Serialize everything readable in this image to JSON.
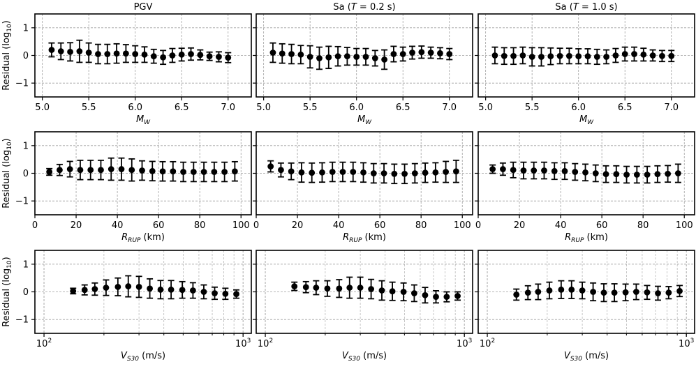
{
  "figure": {
    "column_titles": [
      "PGV",
      "Sa (T = 0.2 s)",
      "Sa (T = 1.0 s)"
    ],
    "ylabel": "Residual (log10)",
    "yticks": [
      -1,
      0,
      1
    ]
  },
  "chart_data": [
    {
      "type": "scatter",
      "row": 0,
      "col": 0,
      "title": "PGV",
      "xlabel": "MW",
      "ylabel": "Residual (log10)",
      "xscale": "linear",
      "xlim": [
        4.92,
        7.25
      ],
      "ylim": [
        -1.5,
        1.5
      ],
      "xticks": [
        5.0,
        5.5,
        6.0,
        6.5,
        7.0
      ],
      "xticklabels": [
        "5.0",
        "5.5",
        "6.0",
        "6.5",
        "7.0"
      ],
      "x": [
        5.1,
        5.2,
        5.3,
        5.4,
        5.5,
        5.6,
        5.7,
        5.8,
        5.9,
        6.0,
        6.1,
        6.2,
        6.3,
        6.4,
        6.5,
        6.6,
        6.7,
        6.8,
        6.9,
        7.0
      ],
      "y": [
        0.2,
        0.15,
        0.13,
        0.15,
        0.1,
        0.05,
        0.05,
        0.07,
        0.07,
        0.05,
        0.03,
        -0.03,
        -0.07,
        0.0,
        0.03,
        0.05,
        0.02,
        -0.03,
        -0.05,
        -0.08
      ],
      "err": [
        0.25,
        0.3,
        0.33,
        0.4,
        0.35,
        0.35,
        0.35,
        0.35,
        0.32,
        0.3,
        0.28,
        0.25,
        0.25,
        0.25,
        0.23,
        0.22,
        0.18,
        0.15,
        0.18,
        0.18
      ]
    },
    {
      "type": "scatter",
      "row": 0,
      "col": 1,
      "title": "Sa (T = 0.2 s)",
      "xlabel": "MW",
      "ylabel": "",
      "xscale": "linear",
      "xlim": [
        4.92,
        7.25
      ],
      "ylim": [
        -1.5,
        1.5
      ],
      "xticks": [
        5.0,
        5.5,
        6.0,
        6.5,
        7.0
      ],
      "xticklabels": [
        "5.0",
        "5.5",
        "6.0",
        "6.5",
        "7.0"
      ],
      "x": [
        5.1,
        5.2,
        5.3,
        5.4,
        5.5,
        5.6,
        5.7,
        5.8,
        5.9,
        6.0,
        6.1,
        6.2,
        6.3,
        6.4,
        6.5,
        6.6,
        6.7,
        6.8,
        6.9,
        7.0
      ],
      "y": [
        0.1,
        0.07,
        0.05,
        0.03,
        -0.05,
        -0.1,
        -0.07,
        -0.03,
        -0.03,
        -0.05,
        -0.05,
        -0.1,
        -0.15,
        0.05,
        0.05,
        0.1,
        0.12,
        0.1,
        0.08,
        0.05
      ],
      "err": [
        0.35,
        0.35,
        0.35,
        0.33,
        0.4,
        0.4,
        0.4,
        0.35,
        0.32,
        0.3,
        0.3,
        0.28,
        0.35,
        0.28,
        0.25,
        0.23,
        0.22,
        0.2,
        0.2,
        0.2
      ]
    },
    {
      "type": "scatter",
      "row": 0,
      "col": 2,
      "title": "Sa (T = 1.0 s)",
      "xlabel": "MW",
      "ylabel": "",
      "xscale": "linear",
      "xlim": [
        4.92,
        7.25
      ],
      "ylim": [
        -1.5,
        1.5
      ],
      "xticks": [
        5.0,
        5.5,
        6.0,
        6.5,
        7.0
      ],
      "xticklabels": [
        "5.0",
        "5.5",
        "6.0",
        "6.5",
        "7.0"
      ],
      "x": [
        5.1,
        5.2,
        5.3,
        5.4,
        5.5,
        5.6,
        5.7,
        5.8,
        5.9,
        6.0,
        6.1,
        6.2,
        6.3,
        6.4,
        6.5,
        6.6,
        6.7,
        6.8,
        6.9,
        7.0
      ],
      "y": [
        0.0,
        -0.02,
        -0.02,
        0.0,
        -0.05,
        -0.05,
        -0.03,
        -0.02,
        -0.02,
        -0.03,
        -0.03,
        -0.05,
        -0.05,
        0.0,
        0.05,
        0.05,
        0.03,
        0.0,
        -0.02,
        -0.02
      ],
      "err": [
        0.3,
        0.3,
        0.3,
        0.3,
        0.33,
        0.33,
        0.3,
        0.28,
        0.28,
        0.27,
        0.27,
        0.27,
        0.25,
        0.25,
        0.25,
        0.25,
        0.23,
        0.2,
        0.2,
        0.2
      ]
    },
    {
      "type": "scatter",
      "row": 1,
      "col": 0,
      "title": "",
      "xlabel": "RRUP (km)",
      "ylabel": "Residual (log10)",
      "xscale": "linear",
      "xlim": [
        0,
        105
      ],
      "ylim": [
        -1.5,
        1.5
      ],
      "xticks": [
        0,
        20,
        40,
        60,
        80,
        100
      ],
      "xticklabels": [
        "0",
        "20",
        "40",
        "60",
        "80",
        "100"
      ],
      "x": [
        7,
        12,
        17,
        22,
        27,
        32,
        37,
        42,
        47,
        52,
        57,
        62,
        67,
        72,
        77,
        82,
        87,
        92,
        97
      ],
      "y": [
        0.05,
        0.12,
        0.15,
        0.12,
        0.12,
        0.12,
        0.15,
        0.15,
        0.12,
        0.1,
        0.08,
        0.07,
        0.07,
        0.05,
        0.05,
        0.05,
        0.05,
        0.05,
        0.07
      ],
      "err": [
        0.12,
        0.2,
        0.28,
        0.35,
        0.35,
        0.35,
        0.4,
        0.4,
        0.4,
        0.35,
        0.35,
        0.35,
        0.35,
        0.35,
        0.35,
        0.35,
        0.35,
        0.35,
        0.35
      ]
    },
    {
      "type": "scatter",
      "row": 1,
      "col": 1,
      "title": "",
      "xlabel": "RRUP (km)",
      "ylabel": "",
      "xscale": "linear",
      "xlim": [
        0,
        105
      ],
      "ylim": [
        -1.5,
        1.5
      ],
      "xticks": [
        0,
        20,
        40,
        60,
        80,
        100
      ],
      "xticklabels": [
        "0",
        "20",
        "40",
        "60",
        "80",
        "100"
      ],
      "x": [
        7,
        12,
        17,
        22,
        27,
        32,
        37,
        42,
        47,
        52,
        57,
        62,
        67,
        72,
        77,
        82,
        87,
        92,
        97
      ],
      "y": [
        0.25,
        0.12,
        0.07,
        0.03,
        0.02,
        0.03,
        0.05,
        0.05,
        0.05,
        0.03,
        0.0,
        0.0,
        -0.02,
        -0.02,
        0.0,
        0.02,
        0.03,
        0.05,
        0.07
      ],
      "err": [
        0.2,
        0.25,
        0.3,
        0.35,
        0.35,
        0.35,
        0.35,
        0.35,
        0.35,
        0.35,
        0.35,
        0.35,
        0.35,
        0.35,
        0.35,
        0.35,
        0.35,
        0.38,
        0.4
      ]
    },
    {
      "type": "scatter",
      "row": 1,
      "col": 2,
      "title": "",
      "xlabel": "RRUP (km)",
      "ylabel": "",
      "xscale": "linear",
      "xlim": [
        0,
        105
      ],
      "ylim": [
        -1.5,
        1.5
      ],
      "xticks": [
        0,
        20,
        40,
        60,
        80,
        100
      ],
      "xticklabels": [
        "0",
        "20",
        "40",
        "60",
        "80",
        "100"
      ],
      "x": [
        7,
        12,
        17,
        22,
        27,
        32,
        37,
        42,
        47,
        52,
        57,
        62,
        67,
        72,
        77,
        82,
        87,
        92,
        97
      ],
      "y": [
        0.15,
        0.15,
        0.12,
        0.1,
        0.1,
        0.1,
        0.08,
        0.08,
        0.05,
        0.03,
        0.0,
        -0.03,
        -0.03,
        -0.05,
        -0.05,
        -0.05,
        -0.03,
        -0.02,
        0.0
      ],
      "err": [
        0.15,
        0.22,
        0.28,
        0.3,
        0.3,
        0.3,
        0.3,
        0.3,
        0.3,
        0.3,
        0.3,
        0.3,
        0.3,
        0.3,
        0.3,
        0.3,
        0.3,
        0.3,
        0.33
      ]
    },
    {
      "type": "scatter",
      "row": 2,
      "col": 0,
      "title": "",
      "xlabel": "VS30 (m/s)",
      "ylabel": "Residual (log10)",
      "xscale": "log",
      "xlim": [
        90,
        1100
      ],
      "ylim": [
        -1.5,
        1.5
      ],
      "xticks": [
        100,
        1000
      ],
      "xticklabels": [
        "10^2",
        "10^3"
      ],
      "x": [
        140,
        160,
        180,
        205,
        235,
        265,
        300,
        340,
        385,
        435,
        495,
        560,
        635,
        720,
        815,
        925
      ],
      "y": [
        0.03,
        0.07,
        0.1,
        0.15,
        0.18,
        0.2,
        0.18,
        0.12,
        0.08,
        0.08,
        0.07,
        0.05,
        0.0,
        -0.05,
        -0.07,
        -0.08
      ],
      "err": [
        0.1,
        0.18,
        0.22,
        0.28,
        0.32,
        0.38,
        0.38,
        0.35,
        0.33,
        0.33,
        0.3,
        0.28,
        0.25,
        0.22,
        0.2,
        0.15
      ]
    },
    {
      "type": "scatter",
      "row": 2,
      "col": 1,
      "title": "",
      "xlabel": "VS30 (m/s)",
      "ylabel": "",
      "xscale": "log",
      "xlim": [
        90,
        1100
      ],
      "ylim": [
        -1.5,
        1.5
      ],
      "xticks": [
        100,
        1000
      ],
      "xticklabels": [
        "10^2",
        "10^3"
      ],
      "x": [
        140,
        160,
        180,
        205,
        235,
        265,
        300,
        340,
        385,
        435,
        495,
        560,
        635,
        720,
        815,
        925
      ],
      "y": [
        0.2,
        0.17,
        0.15,
        0.12,
        0.12,
        0.15,
        0.15,
        0.1,
        0.05,
        0.02,
        0.0,
        -0.05,
        -0.12,
        -0.18,
        -0.18,
        -0.15
      ],
      "err": [
        0.15,
        0.2,
        0.25,
        0.28,
        0.32,
        0.38,
        0.38,
        0.35,
        0.35,
        0.33,
        0.32,
        0.3,
        0.28,
        0.22,
        0.18,
        0.15
      ]
    },
    {
      "type": "scatter",
      "row": 2,
      "col": 2,
      "title": "",
      "xlabel": "VS30 (m/s)",
      "ylabel": "",
      "xscale": "log",
      "xlim": [
        90,
        1100
      ],
      "ylim": [
        -1.5,
        1.5
      ],
      "xticks": [
        100,
        1000
      ],
      "xticklabels": [
        "10^2",
        "10^3"
      ],
      "x": [
        140,
        160,
        180,
        205,
        235,
        265,
        300,
        340,
        385,
        435,
        495,
        560,
        635,
        720,
        815,
        925
      ],
      "y": [
        -0.1,
        -0.03,
        0.0,
        0.05,
        0.08,
        0.08,
        0.05,
        0.0,
        -0.03,
        -0.03,
        -0.02,
        0.0,
        -0.02,
        -0.05,
        -0.03,
        0.03
      ],
      "err": [
        0.2,
        0.25,
        0.28,
        0.3,
        0.32,
        0.32,
        0.3,
        0.32,
        0.32,
        0.32,
        0.3,
        0.28,
        0.25,
        0.25,
        0.22,
        0.2
      ]
    }
  ]
}
